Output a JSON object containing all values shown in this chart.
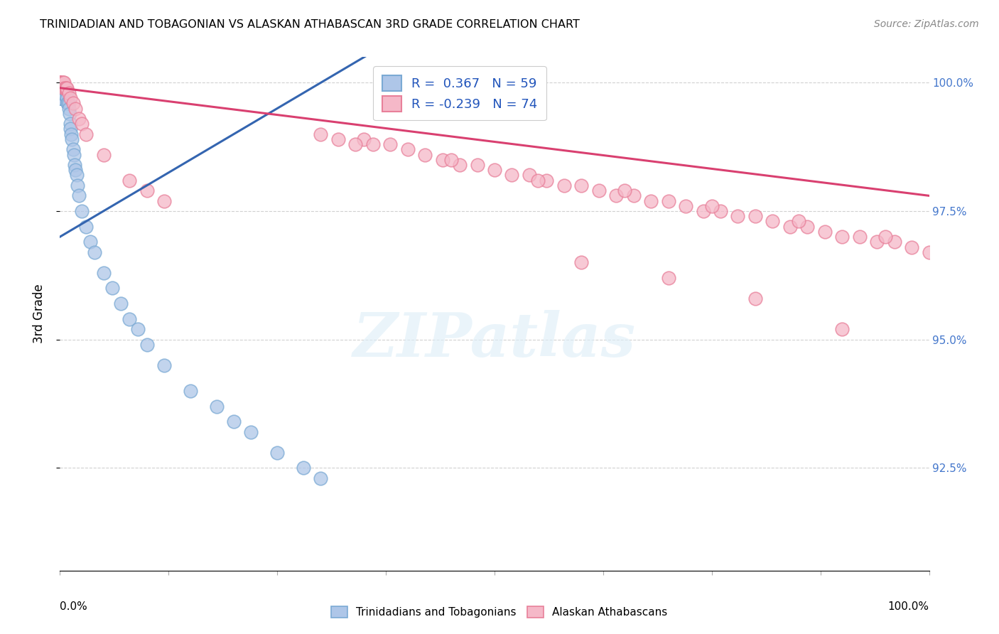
{
  "title": "TRINIDADIAN AND TOBAGONIAN VS ALASKAN ATHABASCAN 3RD GRADE CORRELATION CHART",
  "source": "Source: ZipAtlas.com",
  "ylabel": "3rd Grade",
  "blue_R": 0.367,
  "blue_N": 59,
  "pink_R": -0.239,
  "pink_N": 74,
  "blue_color": "#aec6e8",
  "pink_color": "#f5b8c8",
  "blue_edge_color": "#7baad4",
  "pink_edge_color": "#e8809a",
  "blue_line_color": "#3465b0",
  "pink_line_color": "#d94070",
  "x_range": [
    0.0,
    1.0
  ],
  "y_range": [
    0.905,
    1.005
  ],
  "y_ticks": [
    0.925,
    0.95,
    0.975,
    1.0
  ],
  "y_tick_labels": [
    "92.5%",
    "95.0%",
    "97.5%",
    "100.0%"
  ],
  "blue_scatter_x": [
    0.0,
    0.0,
    0.0,
    0.0,
    0.0,
    0.0,
    0.0,
    0.0,
    0.0,
    0.0,
    0.002,
    0.002,
    0.003,
    0.003,
    0.004,
    0.004,
    0.005,
    0.005,
    0.005,
    0.006,
    0.006,
    0.007,
    0.007,
    0.008,
    0.008,
    0.009,
    0.009,
    0.01,
    0.01,
    0.011,
    0.012,
    0.012,
    0.013,
    0.014,
    0.015,
    0.016,
    0.017,
    0.018,
    0.019,
    0.02,
    0.022,
    0.025,
    0.03,
    0.035,
    0.04,
    0.05,
    0.06,
    0.07,
    0.08,
    0.09,
    0.1,
    0.12,
    0.15,
    0.18,
    0.2,
    0.22,
    0.25,
    0.28,
    0.3
  ],
  "blue_scatter_y": [
    0.997,
    0.997,
    0.997,
    0.997,
    0.997,
    0.997,
    0.997,
    0.997,
    0.997,
    0.997,
    0.998,
    0.998,
    0.998,
    0.998,
    0.998,
    0.999,
    0.999,
    0.999,
    0.999,
    0.999,
    0.999,
    0.999,
    0.999,
    0.998,
    0.997,
    0.996,
    0.996,
    0.996,
    0.995,
    0.994,
    0.992,
    0.991,
    0.99,
    0.989,
    0.987,
    0.986,
    0.984,
    0.983,
    0.982,
    0.98,
    0.978,
    0.975,
    0.972,
    0.969,
    0.967,
    0.963,
    0.96,
    0.957,
    0.954,
    0.952,
    0.949,
    0.945,
    0.94,
    0.937,
    0.934,
    0.932,
    0.928,
    0.925,
    0.923
  ],
  "pink_scatter_x": [
    0.0,
    0.0,
    0.0,
    0.0,
    0.0,
    0.0,
    0.0,
    0.0,
    0.002,
    0.003,
    0.004,
    0.005,
    0.005,
    0.006,
    0.007,
    0.008,
    0.01,
    0.012,
    0.015,
    0.018,
    0.022,
    0.025,
    0.03,
    0.05,
    0.08,
    0.1,
    0.12,
    0.35,
    0.38,
    0.4,
    0.42,
    0.44,
    0.46,
    0.48,
    0.5,
    0.52,
    0.54,
    0.56,
    0.58,
    0.6,
    0.62,
    0.64,
    0.66,
    0.68,
    0.7,
    0.72,
    0.74,
    0.76,
    0.78,
    0.8,
    0.82,
    0.84,
    0.86,
    0.88,
    0.9,
    0.92,
    0.94,
    0.96,
    0.98,
    1.0,
    0.3,
    0.32,
    0.34,
    0.36,
    0.45,
    0.55,
    0.65,
    0.75,
    0.85,
    0.95,
    0.6,
    0.7,
    0.8,
    0.9
  ],
  "pink_scatter_y": [
    1.0,
    1.0,
    1.0,
    1.0,
    1.0,
    1.0,
    1.0,
    1.0,
    1.0,
    1.0,
    1.0,
    1.0,
    0.999,
    0.999,
    0.999,
    0.999,
    0.998,
    0.997,
    0.996,
    0.995,
    0.993,
    0.992,
    0.99,
    0.986,
    0.981,
    0.979,
    0.977,
    0.989,
    0.988,
    0.987,
    0.986,
    0.985,
    0.984,
    0.984,
    0.983,
    0.982,
    0.982,
    0.981,
    0.98,
    0.98,
    0.979,
    0.978,
    0.978,
    0.977,
    0.977,
    0.976,
    0.975,
    0.975,
    0.974,
    0.974,
    0.973,
    0.972,
    0.972,
    0.971,
    0.97,
    0.97,
    0.969,
    0.969,
    0.968,
    0.967,
    0.99,
    0.989,
    0.988,
    0.988,
    0.985,
    0.981,
    0.979,
    0.976,
    0.973,
    0.97,
    0.965,
    0.962,
    0.958,
    0.952
  ],
  "watermark_text": "ZIPatlas",
  "legend_label_blue": "Trinidadians and Tobagonians",
  "legend_label_pink": "Alaskan Athabascans"
}
